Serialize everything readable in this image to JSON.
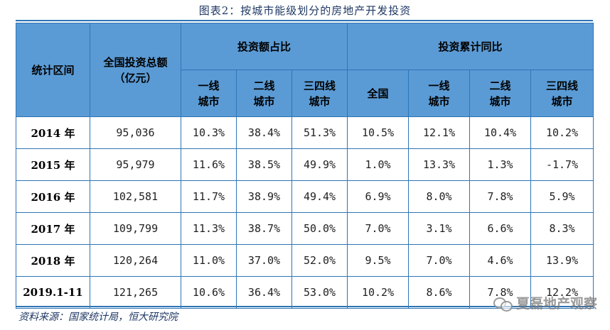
{
  "caption": "图表2：按城市能级划分的房地产开发投资",
  "header": {
    "period": "统计区间",
    "total_line1": "全国投资总额",
    "total_line2": "（亿元）",
    "share_group": "投资额占比",
    "yoy_group": "投资累计同比",
    "share_cols": [
      {
        "line1": "一线",
        "line2": "城市"
      },
      {
        "line1": "二线",
        "line2": "城市"
      },
      {
        "line1": "三四线",
        "line2": "城市"
      }
    ],
    "yoy_cols": [
      {
        "line1": "全国",
        "line2": ""
      },
      {
        "line1": "一线",
        "line2": "城市"
      },
      {
        "line1": "二线",
        "line2": "城市"
      },
      {
        "line1": "三四线",
        "line2": "城市"
      }
    ]
  },
  "rows": [
    {
      "period": "2014 年",
      "total": "95,036",
      "share": [
        "10.3%",
        "38.4%",
        "51.3%"
      ],
      "yoy": [
        "10.5%",
        "12.1%",
        "10.4%",
        "10.2%"
      ]
    },
    {
      "period": "2015 年",
      "total": "95,979",
      "share": [
        "11.6%",
        "38.5%",
        "49.9%"
      ],
      "yoy": [
        "1.0%",
        "13.3%",
        "1.3%",
        "-1.7%"
      ]
    },
    {
      "period": "2016 年",
      "total": "102,581",
      "share": [
        "11.7%",
        "38.9%",
        "49.4%"
      ],
      "yoy": [
        "6.9%",
        "8.0%",
        "7.8%",
        "5.9%"
      ]
    },
    {
      "period": "2017 年",
      "total": "109,799",
      "share": [
        "11.3%",
        "38.7%",
        "50.0%"
      ],
      "yoy": [
        "7.0%",
        "3.1%",
        "6.6%",
        "8.3%"
      ]
    },
    {
      "period": "2018 年",
      "total": "120,264",
      "share": [
        "11.0%",
        "37.0%",
        "52.0%"
      ],
      "yoy": [
        "9.5%",
        "7.0%",
        "4.6%",
        "13.9%"
      ]
    },
    {
      "period": "2019.1-11",
      "total": "121,265",
      "share": [
        "10.6%",
        "36.4%",
        "53.0%"
      ],
      "yoy": [
        "10.2%",
        "8.6%",
        "7.8%",
        "12.2%"
      ]
    }
  ],
  "source": "资料来源：国家统计局，恒大研究院",
  "watermark": "夏磊地产观察",
  "colors": {
    "header_bg": "#5b9bd5",
    "border": "#2e75b6",
    "caption": "#1f3864"
  }
}
